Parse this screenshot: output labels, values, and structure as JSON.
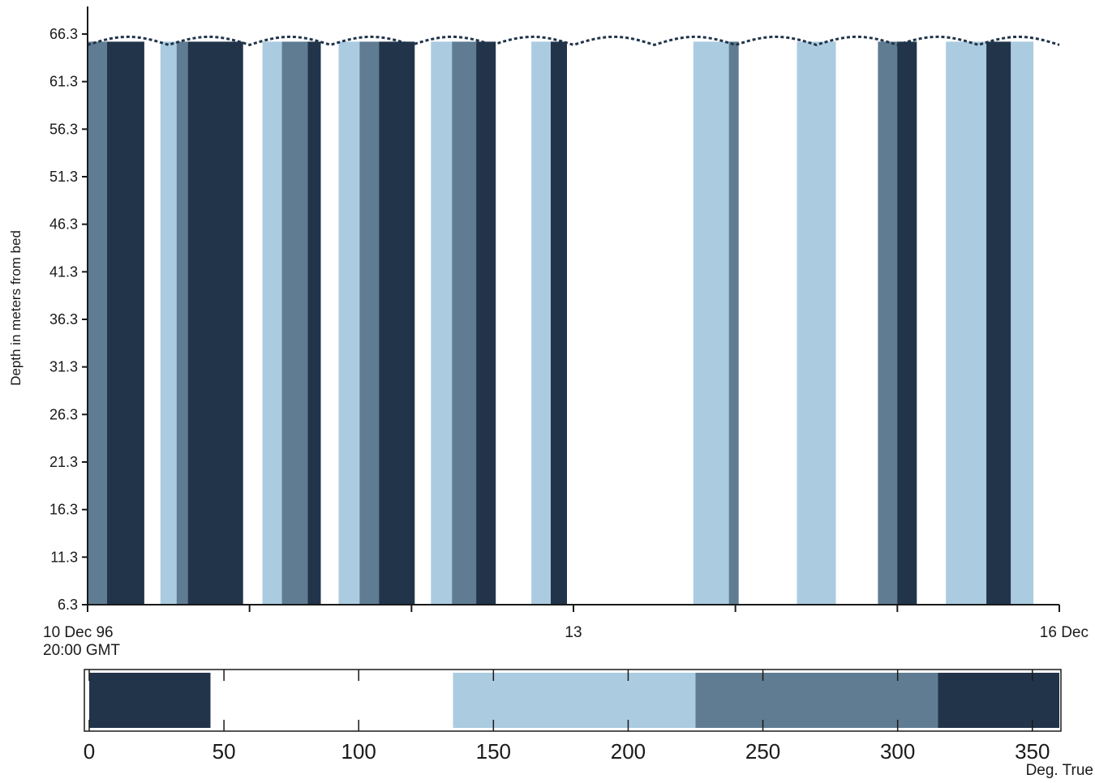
{
  "chart_data": [
    {
      "type": "heatmap",
      "title": "",
      "ylabel": "Depth in meters from bed",
      "xlabel": "",
      "y_ticks": [
        "66.3",
        "61.3",
        "56.3",
        "51.3",
        "46.3",
        "41.3",
        "36.3",
        "31.3",
        "26.3",
        "21.3",
        "16.3",
        "11.3",
        "6.3"
      ],
      "y_range": [
        6.3,
        66.3
      ],
      "x_ticks": [
        {
          "label": "10 Dec 96",
          "sublabel": "20:00 GMT",
          "t": 0
        },
        {
          "label": "",
          "t": 1
        },
        {
          "label": "",
          "t": 2
        },
        {
          "label": "13",
          "t": 3
        },
        {
          "label": "",
          "t": 4
        },
        {
          "label": "",
          "t": 5
        },
        {
          "label": "16 Dec",
          "t": 6
        }
      ],
      "x_range_days": [
        0,
        6
      ],
      "value_units": "Deg. True",
      "surface_depth_m": 65.5,
      "bands": [
        {
          "t0": 0.0,
          "t1": 0.12,
          "bin": 3
        },
        {
          "t0": 0.12,
          "t1": 0.35,
          "bin": 0
        },
        {
          "t0": 0.35,
          "t1": 0.45,
          "bin": 1
        },
        {
          "t0": 0.45,
          "t1": 0.55,
          "bin": 2
        },
        {
          "t0": 0.55,
          "t1": 0.62,
          "bin": 3
        },
        {
          "t0": 0.62,
          "t1": 0.96,
          "bin": 0
        },
        {
          "t0": 0.96,
          "t1": 1.08,
          "bin": 1
        },
        {
          "t0": 1.08,
          "t1": 1.2,
          "bin": 2
        },
        {
          "t0": 1.2,
          "t1": 1.36,
          "bin": 3
        },
        {
          "t0": 1.36,
          "t1": 1.44,
          "bin": 0
        },
        {
          "t0": 1.44,
          "t1": 1.55,
          "bin": 1
        },
        {
          "t0": 1.55,
          "t1": 1.68,
          "bin": 2
        },
        {
          "t0": 1.68,
          "t1": 1.8,
          "bin": 3
        },
        {
          "t0": 1.8,
          "t1": 2.02,
          "bin": 0
        },
        {
          "t0": 2.02,
          "t1": 2.12,
          "bin": 1
        },
        {
          "t0": 2.12,
          "t1": 2.25,
          "bin": 2
        },
        {
          "t0": 2.25,
          "t1": 2.4,
          "bin": 3
        },
        {
          "t0": 2.4,
          "t1": 2.52,
          "bin": 0
        },
        {
          "t0": 2.52,
          "t1": 2.74,
          "bin": 1
        },
        {
          "t0": 2.74,
          "t1": 2.86,
          "bin": 2
        },
        {
          "t0": 2.86,
          "t1": 2.96,
          "bin": 0
        },
        {
          "t0": 2.96,
          "t1": 3.74,
          "bin": 1
        },
        {
          "t0": 3.74,
          "t1": 3.96,
          "bin": 2
        },
        {
          "t0": 3.96,
          "t1": 4.02,
          "bin": 3
        },
        {
          "t0": 4.02,
          "t1": 4.38,
          "bin": 1
        },
        {
          "t0": 4.38,
          "t1": 4.62,
          "bin": 2
        },
        {
          "t0": 4.62,
          "t1": 4.88,
          "bin": 1
        },
        {
          "t0": 4.88,
          "t1": 5.0,
          "bin": 3
        },
        {
          "t0": 5.0,
          "t1": 5.12,
          "bin": 0
        },
        {
          "t0": 5.12,
          "t1": 5.3,
          "bin": 1
        },
        {
          "t0": 5.3,
          "t1": 5.55,
          "bin": 2
        },
        {
          "t0": 5.55,
          "t1": 5.7,
          "bin": 0
        },
        {
          "t0": 5.7,
          "t1": 5.84,
          "bin": 2
        },
        {
          "t0": 5.84,
          "t1": 6.0,
          "bin": 1
        }
      ],
      "colorbar": {
        "ticks": [
          0,
          50,
          100,
          150,
          200,
          250,
          300,
          350
        ],
        "range": [
          0,
          360
        ],
        "bins": [
          {
            "from": 0,
            "to": 45,
            "color": "#21344a"
          },
          {
            "from": 45,
            "to": 135,
            "color": "#ffffff"
          },
          {
            "from": 135,
            "to": 225,
            "color": "#abcbe0"
          },
          {
            "from": 225,
            "to": 315,
            "color": "#5f7c92"
          },
          {
            "from": 315,
            "to": 360,
            "color": "#21344a"
          }
        ]
      }
    }
  ],
  "colors": {
    "dark": "#21344a",
    "white": "#ffffff",
    "light": "#abcbe0",
    "mid": "#5f7c92",
    "axis": "#1a1a1a"
  }
}
